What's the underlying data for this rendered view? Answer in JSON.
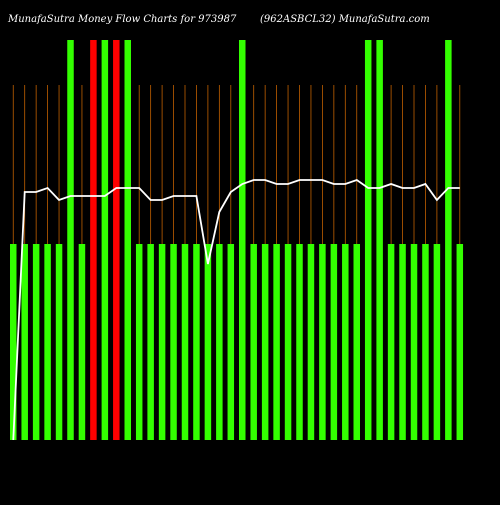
{
  "header": {
    "left_title": "MunafaSutra  Money Flow  Charts for 973987",
    "right_title": "(962ASBCL32) MunafaSutra.com"
  },
  "colors": {
    "background": "#000000",
    "up_bar": "#33ff00",
    "down_bar": "#ff0000",
    "grid_line": "#c06000",
    "flow_line": "#ffffff",
    "label_text": "#ffffff"
  },
  "chart_data": {
    "type": "bar",
    "title": "MunafaSutra  Money Flow  Charts for 973987",
    "subtitle": "(962ASBCL32) MunafaSutra.com",
    "grid": true,
    "ylim": [
      0,
      100
    ],
    "categories": [
      "",
      "",
      "",
      "",
      "",
      "",
      "",
      "",
      "",
      "",
      "",
      "",
      "",
      "",
      "",
      "",
      "",
      "",
      "",
      "",
      "",
      "",
      "",
      "",
      "",
      "",
      "",
      "",
      "",
      "",
      "",
      "",
      "",
      "",
      "",
      "",
      "",
      "",
      "",
      ""
    ],
    "bars": [
      {
        "value": 49,
        "color": "green"
      },
      {
        "value": 49,
        "color": "green"
      },
      {
        "value": 49,
        "color": "green"
      },
      {
        "value": 49,
        "color": "green"
      },
      {
        "value": 49,
        "color": "green"
      },
      {
        "value": 100,
        "color": "green"
      },
      {
        "value": 49,
        "color": "green"
      },
      {
        "value": 100,
        "color": "red"
      },
      {
        "value": 100,
        "color": "green"
      },
      {
        "value": 100,
        "color": "red"
      },
      {
        "value": 100,
        "color": "green"
      },
      {
        "value": 49,
        "color": "green"
      },
      {
        "value": 49,
        "color": "green"
      },
      {
        "value": 49,
        "color": "green"
      },
      {
        "value": 49,
        "color": "green"
      },
      {
        "value": 49,
        "color": "green"
      },
      {
        "value": 49,
        "color": "green"
      },
      {
        "value": 49,
        "color": "green"
      },
      {
        "value": 49,
        "color": "green"
      },
      {
        "value": 49,
        "color": "green"
      },
      {
        "value": 100,
        "color": "green"
      },
      {
        "value": 49,
        "color": "green"
      },
      {
        "value": 49,
        "color": "green"
      },
      {
        "value": 49,
        "color": "green"
      },
      {
        "value": 49,
        "color": "green"
      },
      {
        "value": 49,
        "color": "green"
      },
      {
        "value": 49,
        "color": "green"
      },
      {
        "value": 49,
        "color": "green"
      },
      {
        "value": 49,
        "color": "green"
      },
      {
        "value": 49,
        "color": "green"
      },
      {
        "value": 49,
        "color": "green"
      },
      {
        "value": 100,
        "color": "green"
      },
      {
        "value": 100,
        "color": "green"
      },
      {
        "value": 49,
        "color": "green"
      },
      {
        "value": 49,
        "color": "green"
      },
      {
        "value": 49,
        "color": "green"
      },
      {
        "value": 49,
        "color": "green"
      },
      {
        "value": 49,
        "color": "green"
      },
      {
        "value": 100,
        "color": "green"
      },
      {
        "value": 49,
        "color": "green"
      }
    ],
    "line": {
      "values": [
        0,
        62,
        62,
        63,
        60,
        61,
        61,
        61,
        61,
        63,
        63,
        63,
        60,
        60,
        61,
        61,
        61,
        44,
        57,
        62,
        64,
        65,
        65,
        64,
        64,
        65,
        65,
        65,
        64,
        64,
        65,
        63,
        63,
        64,
        63,
        63,
        64,
        60,
        63,
        63
      ]
    }
  }
}
